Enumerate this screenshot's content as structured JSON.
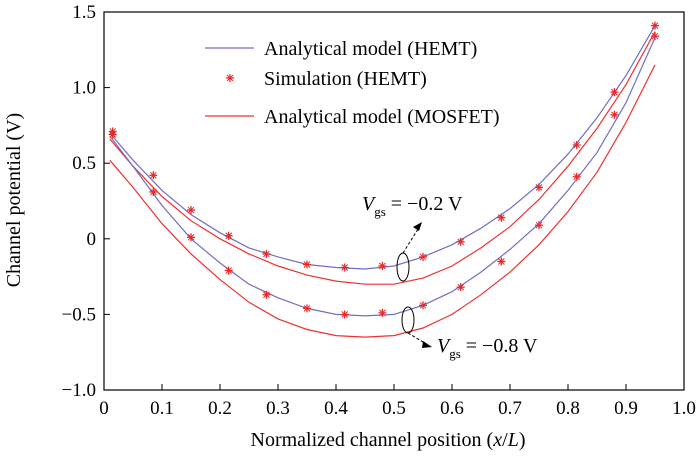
{
  "chart_data": {
    "type": "line",
    "xlabel_prefix": "Normalized channel position (",
    "xlabel_var": "x",
    "xlabel_slash": "/",
    "xlabel_var2": "L",
    "xlabel_suffix": ")",
    "ylabel": "Channel potential (V)",
    "xlim": [
      0,
      1.0
    ],
    "ylim": [
      -1.0,
      1.5
    ],
    "xticks": [
      "0",
      "0.1",
      "0.2",
      "0.3",
      "0.4",
      "0.5",
      "0.6",
      "0.7",
      "0.8",
      "0.9",
      "1.0"
    ],
    "yticks": [
      "-1.0",
      "-0.5",
      "0",
      "0.5",
      "1.0",
      "1.5"
    ],
    "grid": false,
    "legend_position": "top-left",
    "colors": {
      "hemt_model": "#6f6fc4",
      "simulation": "#e82828",
      "mosfet_model": "#f03030"
    },
    "legend": [
      {
        "label": "Analytical model (HEMT)",
        "style": "line",
        "color": "#6f6fc4"
      },
      {
        "label": "Simulation (HEMT)",
        "style": "marker",
        "color": "#e82828"
      },
      {
        "label": "Analytical model (MOSFET)",
        "style": "line",
        "color": "#f03030"
      }
    ],
    "annotations": [
      {
        "var": "V",
        "sub": "gs",
        "text": " = −0.2 V"
      },
      {
        "var": "V",
        "sub": "gs",
        "text": " = −0.8 V"
      }
    ],
    "series": [
      {
        "name": "Analytical model (HEMT)",
        "vgs": "-0.2 V",
        "style": "line",
        "color": "#6f6fc4",
        "x": [
          0.01,
          0.05,
          0.1,
          0.15,
          0.2,
          0.25,
          0.3,
          0.35,
          0.4,
          0.45,
          0.5,
          0.55,
          0.6,
          0.65,
          0.7,
          0.75,
          0.8,
          0.85,
          0.9,
          0.95
        ],
        "y": [
          0.7,
          0.52,
          0.32,
          0.16,
          0.04,
          -0.06,
          -0.12,
          -0.17,
          -0.19,
          -0.2,
          -0.18,
          -0.12,
          -0.04,
          0.07,
          0.2,
          0.36,
          0.56,
          0.8,
          1.08,
          1.41
        ]
      },
      {
        "name": "Simulation (HEMT)",
        "vgs": "-0.2 V",
        "style": "marker",
        "color": "#e82828",
        "x": [
          0.015,
          0.085,
          0.15,
          0.215,
          0.28,
          0.35,
          0.415,
          0.48,
          0.55,
          0.615,
          0.685,
          0.75,
          0.815,
          0.88,
          0.95
        ],
        "y": [
          0.71,
          0.42,
          0.19,
          0.02,
          -0.1,
          -0.17,
          -0.19,
          -0.18,
          -0.12,
          -0.02,
          0.14,
          0.34,
          0.62,
          0.97,
          1.41
        ]
      },
      {
        "name": "Analytical model (MOSFET)",
        "vgs": "-0.2 V",
        "style": "line",
        "color": "#f03030",
        "x": [
          0.01,
          0.05,
          0.1,
          0.15,
          0.2,
          0.25,
          0.3,
          0.35,
          0.4,
          0.45,
          0.5,
          0.55,
          0.6,
          0.65,
          0.7,
          0.75,
          0.8,
          0.85,
          0.9,
          0.95
        ],
        "y": [
          0.66,
          0.48,
          0.28,
          0.12,
          0.0,
          -0.1,
          -0.18,
          -0.24,
          -0.28,
          -0.3,
          -0.3,
          -0.26,
          -0.18,
          -0.06,
          0.08,
          0.26,
          0.48,
          0.73,
          1.02,
          1.37
        ]
      },
      {
        "name": "Analytical model (HEMT)",
        "vgs": "-0.8 V",
        "style": "line",
        "color": "#6f6fc4",
        "x": [
          0.01,
          0.05,
          0.1,
          0.15,
          0.2,
          0.25,
          0.3,
          0.35,
          0.4,
          0.45,
          0.5,
          0.55,
          0.6,
          0.65,
          0.7,
          0.75,
          0.8,
          0.85,
          0.9,
          0.95
        ],
        "y": [
          0.68,
          0.48,
          0.22,
          0.0,
          -0.16,
          -0.3,
          -0.39,
          -0.46,
          -0.5,
          -0.51,
          -0.5,
          -0.44,
          -0.35,
          -0.22,
          -0.07,
          0.1,
          0.32,
          0.57,
          0.9,
          1.33
        ]
      },
      {
        "name": "Simulation (HEMT)",
        "vgs": "-0.8 V",
        "style": "marker",
        "color": "#e82828",
        "x": [
          0.015,
          0.085,
          0.15,
          0.215,
          0.28,
          0.35,
          0.415,
          0.48,
          0.55,
          0.615,
          0.685,
          0.75,
          0.815,
          0.88,
          0.95
        ],
        "y": [
          0.69,
          0.31,
          0.01,
          -0.21,
          -0.37,
          -0.46,
          -0.5,
          -0.49,
          -0.44,
          -0.32,
          -0.15,
          0.09,
          0.41,
          0.82,
          1.34
        ]
      },
      {
        "name": "Analytical model (MOSFET)",
        "vgs": "-0.8 V",
        "style": "line",
        "color": "#f03030",
        "x": [
          0.01,
          0.05,
          0.1,
          0.15,
          0.2,
          0.25,
          0.3,
          0.35,
          0.4,
          0.45,
          0.5,
          0.55,
          0.6,
          0.65,
          0.7,
          0.75,
          0.8,
          0.85,
          0.9,
          0.95
        ],
        "y": [
          0.52,
          0.34,
          0.1,
          -0.1,
          -0.27,
          -0.42,
          -0.53,
          -0.6,
          -0.64,
          -0.65,
          -0.64,
          -0.59,
          -0.5,
          -0.37,
          -0.22,
          -0.04,
          0.18,
          0.44,
          0.77,
          1.15
        ]
      }
    ]
  }
}
